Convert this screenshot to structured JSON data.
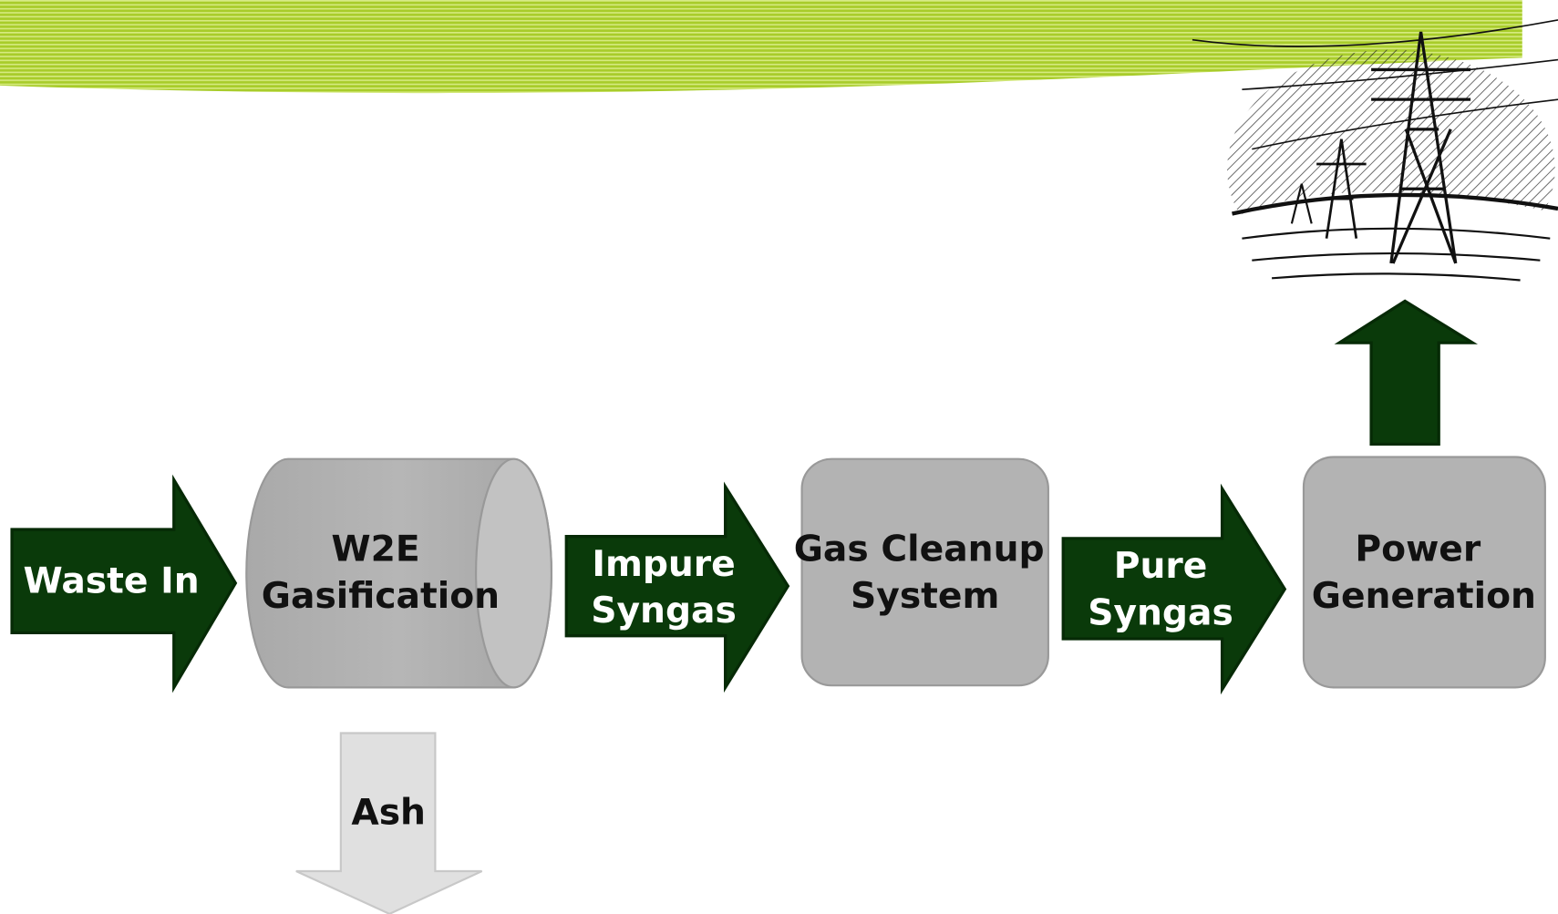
{
  "inputs": [
    {
      "lines": [
        "Waste In"
      ]
    }
  ],
  "units": [
    {
      "lines": [
        "W2E",
        "Gasification"
      ]
    },
    {
      "lines": [
        "Gas Cleanup",
        "System"
      ]
    },
    {
      "lines": [
        "Power",
        "Generation"
      ]
    }
  ],
  "streams": [
    {
      "lines": [
        "Impure",
        "Syngas"
      ]
    },
    {
      "lines": [
        "Pure",
        "Syngas"
      ]
    }
  ],
  "byproducts": [
    {
      "lines": [
        "Ash"
      ]
    }
  ]
}
